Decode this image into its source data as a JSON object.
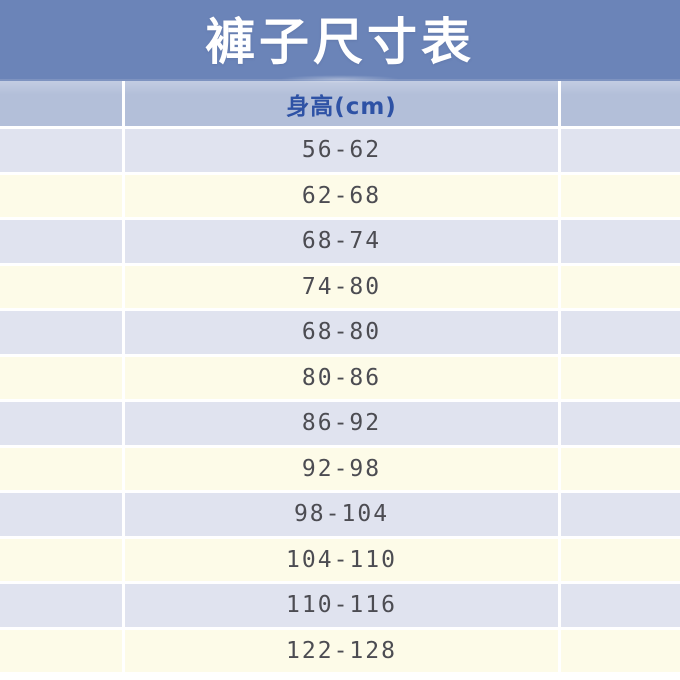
{
  "page_title": "褲子尺寸表",
  "chart_data": {
    "type": "table",
    "title": "褲子尺寸表",
    "header": [
      "",
      "身高(cm)",
      ""
    ],
    "rows": [
      [
        "",
        "56-62",
        ""
      ],
      [
        "",
        "62-68",
        ""
      ],
      [
        "",
        "68-74",
        ""
      ],
      [
        "",
        "74-80",
        ""
      ],
      [
        "",
        "68-80",
        ""
      ],
      [
        "",
        "80-86",
        ""
      ],
      [
        "",
        "86-92",
        ""
      ],
      [
        "",
        "92-98",
        ""
      ],
      [
        "",
        "98-104",
        ""
      ],
      [
        "",
        "104-110",
        ""
      ],
      [
        "",
        "110-116",
        ""
      ],
      [
        "",
        "122-128",
        ""
      ]
    ],
    "layout": {
      "columns_visible": 3,
      "row_striping": [
        "lavender",
        "cream"
      ],
      "legend": "none",
      "grid": "white dividers between rows and columns"
    }
  },
  "colors": {
    "banner_blue": "#6b84b8",
    "header_row_blue": "#b3bfd9",
    "row_lavender": "#e0e3ef",
    "row_cream": "#fdfbe8",
    "divider_white": "#ffffff",
    "title_text": "#ffffff",
    "header_text": "#2e52a5",
    "data_text": "#4c4c52"
  }
}
